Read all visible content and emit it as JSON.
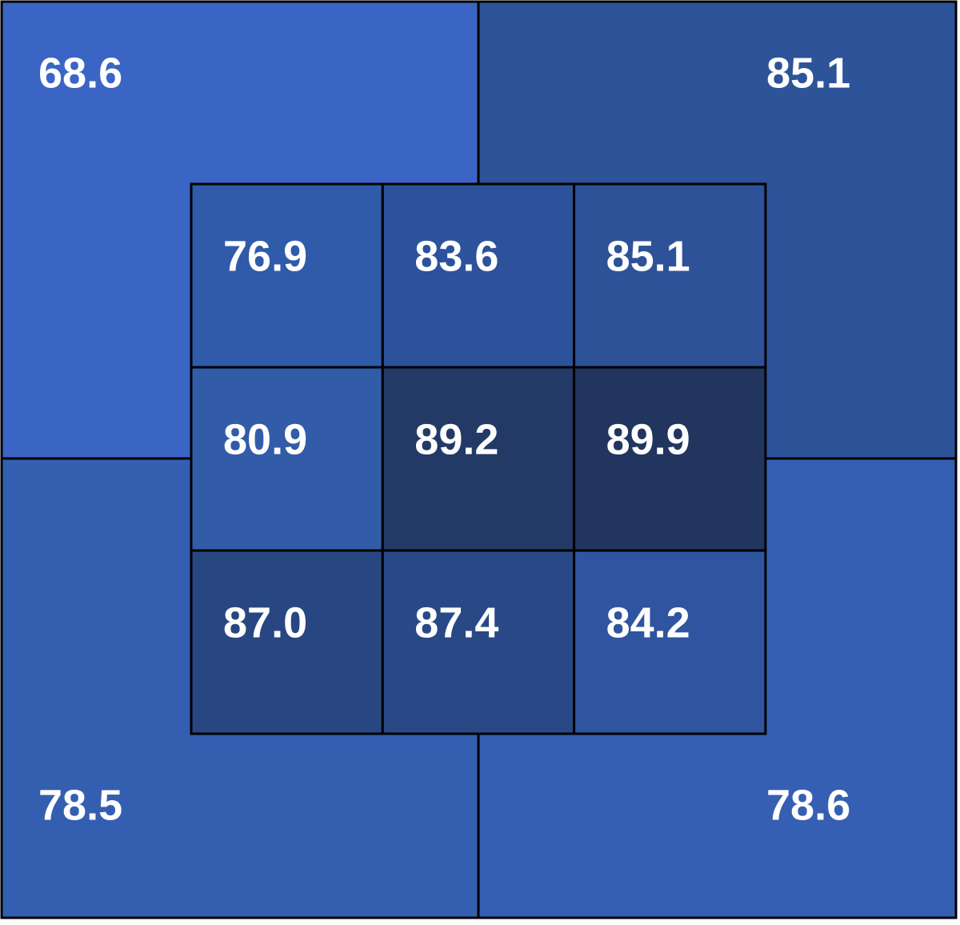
{
  "quadrants": [
    {
      "label": "68.6",
      "color": "#3a65c4"
    },
    {
      "label": "85.1",
      "color": "#2d5398"
    },
    {
      "label": "78.5",
      "color": "#345fb0"
    },
    {
      "label": "78.6",
      "color": "#355fb2"
    }
  ],
  "cells": [
    [
      {
        "label": "76.9",
        "color": "#305aaa"
      },
      {
        "label": "83.6",
        "color": "#2c529b"
      },
      {
        "label": "85.1",
        "color": "#2d5298"
      }
    ],
    [
      {
        "label": "80.9",
        "color": "#325ca8"
      },
      {
        "label": "89.2",
        "color": "#233a66"
      },
      {
        "label": "89.9",
        "color": "#21355e"
      }
    ],
    [
      {
        "label": "87.0",
        "color": "#284782"
      },
      {
        "label": "87.4",
        "color": "#294986"
      },
      {
        "label": "84.2",
        "color": "#2f54a0"
      }
    ]
  ]
}
